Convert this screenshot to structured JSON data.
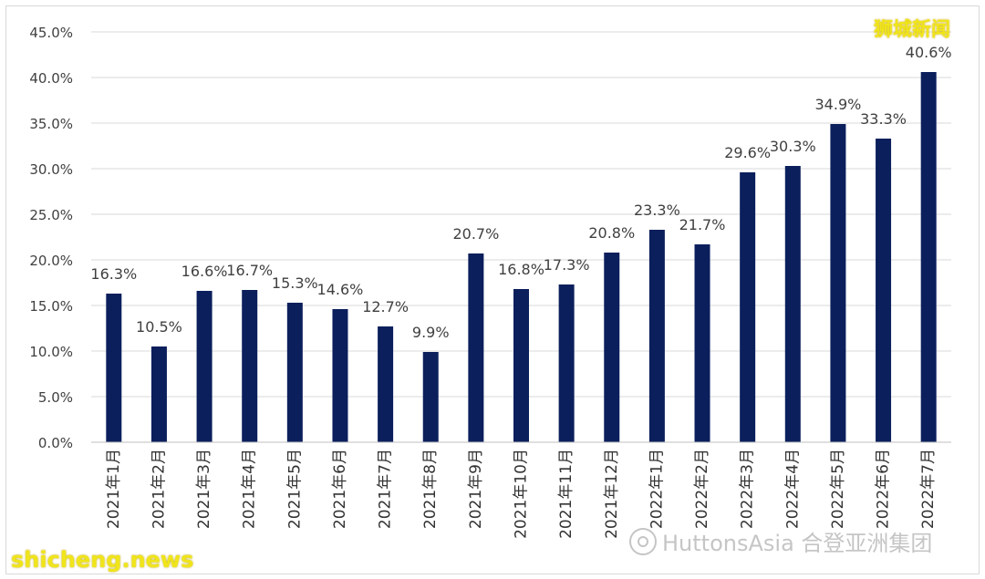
{
  "chart_data": {
    "type": "bar",
    "title": "",
    "xlabel": "",
    "ylabel": "",
    "ylim": [
      0,
      45
    ],
    "grid": true,
    "y_ticks": [
      "0.0%",
      "5.0%",
      "10.0%",
      "15.0%",
      "20.0%",
      "25.0%",
      "30.0%",
      "35.0%",
      "40.0%",
      "45.0%"
    ],
    "categories": [
      "2021年1月",
      "2021年2月",
      "2021年3月",
      "2021年4月",
      "2021年5月",
      "2021年6月",
      "2021年7月",
      "2021年8月",
      "2021年9月",
      "2021年10月",
      "2021年11月",
      "2021年12月",
      "2022年1月",
      "2022年2月",
      "2022年3月",
      "2022年4月",
      "2022年5月",
      "2022年6月",
      "2022年7月"
    ],
    "values": [
      16.3,
      10.5,
      16.6,
      16.7,
      15.3,
      14.6,
      12.7,
      9.9,
      20.7,
      16.8,
      17.3,
      20.8,
      23.3,
      21.7,
      29.6,
      30.3,
      34.9,
      33.3,
      40.6
    ],
    "value_labels": [
      "16.3%",
      "10.5%",
      "16.6%",
      "16.7%",
      "15.3%",
      "14.6%",
      "12.7%",
      "9.9%",
      "20.7%",
      "16.8%",
      "17.3%",
      "20.8%",
      "23.3%",
      "21.7%",
      "29.6%",
      "30.3%",
      "34.9%",
      "33.3%",
      "40.6%"
    ],
    "bar_color": "#0b1f5c",
    "grid_color": "#d9d9d9",
    "label_color": "#404040"
  },
  "watermarks": {
    "top_right": "狮城新闻",
    "bottom_left": "shicheng.news",
    "hutton": "HuttonsAsia 合登亚洲集团"
  }
}
